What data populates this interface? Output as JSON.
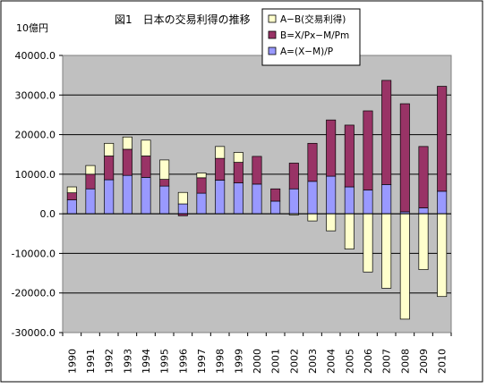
{
  "chart_data": {
    "type": "bar",
    "stacked": true,
    "title": "図1　日本の交易利得の推移",
    "unit_label": "10億円",
    "categories": [
      "1990",
      "1991",
      "1992",
      "1993",
      "1994",
      "1995",
      "1996",
      "1997",
      "1998",
      "1999",
      "2000",
      "2001",
      "2002",
      "2003",
      "2004",
      "2005",
      "2006",
      "2007",
      "2008",
      "2009",
      "2010"
    ],
    "series": [
      {
        "name": "A=(X−M)/P",
        "color": "#9999ff",
        "values": [
          3500,
          6300,
          8600,
          9700,
          9200,
          7000,
          2500,
          5200,
          8500,
          7800,
          7500,
          3200,
          6300,
          8200,
          9500,
          6800,
          6000,
          7400,
          500,
          1500,
          5700
        ]
      },
      {
        "name": "B=X/Px−M/Pm",
        "color": "#993366",
        "values": [
          1800,
          3700,
          6000,
          6600,
          5400,
          1700,
          -500,
          3900,
          5500,
          5200,
          7000,
          3100,
          6500,
          9600,
          14200,
          15600,
          20000,
          26300,
          27300,
          15500,
          26500
        ]
      },
      {
        "name": "A−B(交易利得)",
        "color": "#ffffcc",
        "values": [
          1500,
          2200,
          3200,
          3100,
          4000,
          4900,
          2900,
          1200,
          3000,
          2500,
          0,
          0,
          -300,
          -1800,
          -4300,
          -8900,
          -14700,
          -18800,
          -26600,
          -14100,
          -20900
        ]
      }
    ],
    "legend_order": [
      "A−B(交易利得)",
      "B=X/Px−M/Pm",
      "A=(X−M)/P"
    ],
    "ylim": [
      -30000,
      40000
    ],
    "yticks": [
      "40000.0",
      "30000.0",
      "20000.0",
      "10000.0",
      "0.0",
      "-10000.0",
      "-20000.0",
      "-30000.0"
    ],
    "grid": true,
    "legend_position": "top-right"
  }
}
